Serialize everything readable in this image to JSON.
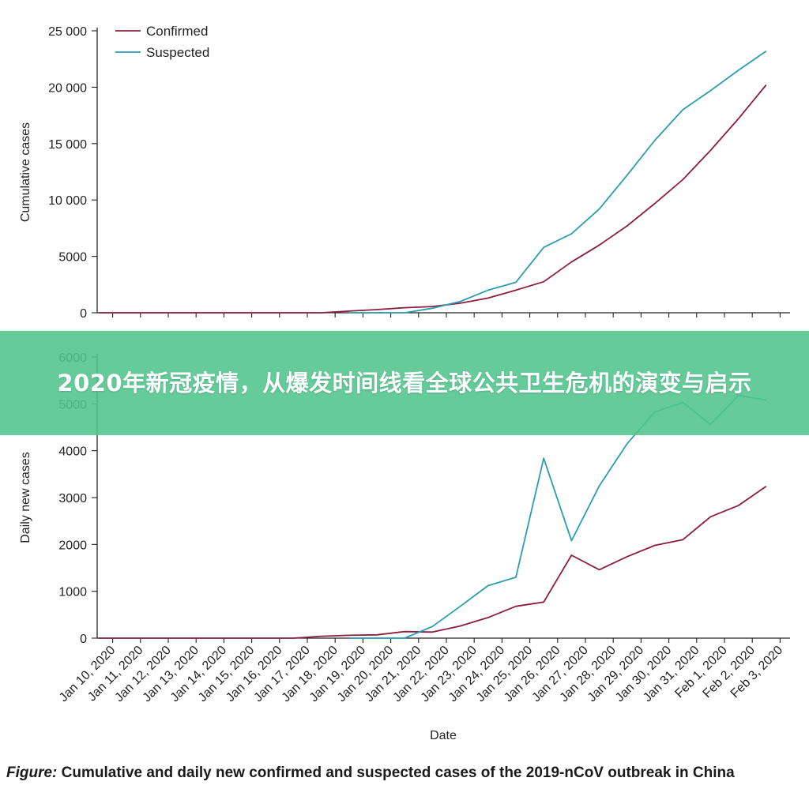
{
  "banner": {
    "text": "2020年新冠疫情，从爆发时间线看全球公共卫生危机的演变与启示"
  },
  "caption": {
    "lead": "Figure:",
    "text": "Cumulative and daily new confirmed and suspected cases of the 2019-nCoV outbreak in China"
  },
  "colors": {
    "confirmed": "#8b1f3f",
    "suspected": "#2a9db0"
  },
  "chart_data": [
    {
      "type": "line",
      "ylabel": "Cumulative cases",
      "xlabel": "",
      "ylim": [
        0,
        25000
      ],
      "yticks": [
        0,
        5000,
        10000,
        15000,
        20000,
        25000
      ],
      "ytick_labels": [
        "0",
        "5000",
        "10 000",
        "15 000",
        "20 000",
        "25 000"
      ],
      "legend": [
        "Confirmed",
        "Suspected"
      ],
      "legend_position": "top-left",
      "categories": [
        "Jan 10, 2020",
        "Jan 11, 2020",
        "Jan 12, 2020",
        "Jan 13, 2020",
        "Jan 14, 2020",
        "Jan 15, 2020",
        "Jan 16, 2020",
        "Jan 17, 2020",
        "Jan 18, 2020",
        "Jan 19, 2020",
        "Jan 20, 2020",
        "Jan 21, 2020",
        "Jan 22, 2020",
        "Jan 23, 2020",
        "Jan 24, 2020",
        "Jan 25, 2020",
        "Jan 26, 2020",
        "Jan 27, 2020",
        "Jan 28, 2020",
        "Jan 29, 2020",
        "Jan 30, 2020",
        "Jan 31, 2020",
        "Feb 1, 2020",
        "Feb 2, 2020",
        "Feb 3, 2020"
      ],
      "series": [
        {
          "name": "Confirmed",
          "values": [
            0,
            0,
            0,
            0,
            0,
            0,
            0,
            0,
            0,
            150,
            280,
            450,
            550,
            850,
            1300,
            2000,
            2750,
            4500,
            6000,
            7700,
            9700,
            11800,
            14400,
            17200,
            20200
          ]
        },
        {
          "name": "Suspected",
          "values": [
            null,
            null,
            null,
            null,
            null,
            null,
            null,
            null,
            null,
            0,
            0,
            0,
            400,
            1000,
            2000,
            2700,
            5800,
            7000,
            9200,
            12200,
            15300,
            18000,
            19700,
            21500,
            23200
          ]
        }
      ]
    },
    {
      "type": "line",
      "ylabel": "Daily new cases",
      "xlabel": "Date",
      "ylim": [
        0,
        6000
      ],
      "yticks": [
        0,
        1000,
        2000,
        3000,
        4000,
        5000,
        6000
      ],
      "ytick_labels": [
        "0",
        "1000",
        "2000",
        "3000",
        "4000",
        "5000",
        "6000"
      ],
      "categories": [
        "Jan 10, 2020",
        "Jan 11, 2020",
        "Jan 12, 2020",
        "Jan 13, 2020",
        "Jan 14, 2020",
        "Jan 15, 2020",
        "Jan 16, 2020",
        "Jan 17, 2020",
        "Jan 18, 2020",
        "Jan 19, 2020",
        "Jan 20, 2020",
        "Jan 21, 2020",
        "Jan 22, 2020",
        "Jan 23, 2020",
        "Jan 24, 2020",
        "Jan 25, 2020",
        "Jan 26, 2020",
        "Jan 27, 2020",
        "Jan 28, 2020",
        "Jan 29, 2020",
        "Jan 30, 2020",
        "Jan 31, 2020",
        "Feb 1, 2020",
        "Feb 2, 2020",
        "Feb 3, 2020"
      ],
      "series": [
        {
          "name": "Confirmed",
          "values": [
            0,
            0,
            0,
            0,
            0,
            0,
            0,
            0,
            40,
            60,
            70,
            140,
            130,
            260,
            440,
            680,
            770,
            1770,
            1460,
            1740,
            1980,
            2100,
            2590,
            2830,
            3240
          ]
        },
        {
          "name": "Suspected",
          "values": [
            null,
            null,
            null,
            null,
            null,
            null,
            null,
            null,
            null,
            0,
            0,
            0,
            250,
            680,
            1120,
            1300,
            3840,
            2080,
            3250,
            4150,
            4830,
            5030,
            4560,
            5180,
            5080
          ]
        }
      ]
    }
  ]
}
